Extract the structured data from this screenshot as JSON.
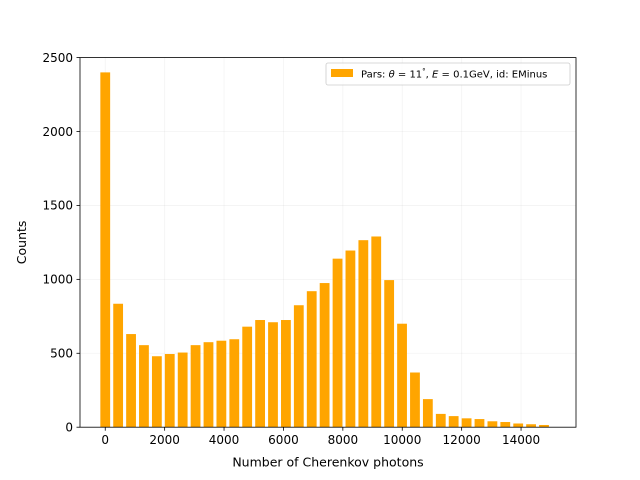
{
  "chart_data": {
    "type": "bar",
    "xlabel": "Number of Cherenkov photons",
    "ylabel": "Counts",
    "xlim": [
      -850,
      15850
    ],
    "ylim": [
      0,
      2500
    ],
    "xticks": [
      0,
      2000,
      4000,
      6000,
      8000,
      10000,
      12000,
      14000
    ],
    "yticks": [
      0,
      500,
      1000,
      1500,
      2000,
      2500
    ],
    "xtick_labels": [
      "0",
      "2000",
      "4000",
      "6000",
      "8000",
      "10000",
      "12000",
      "14000"
    ],
    "ytick_labels": [
      "0",
      "500",
      "1000",
      "1500",
      "2000",
      "2500"
    ],
    "grid": true,
    "legend_position": "top-right",
    "bar_color": "#ffa500",
    "bar_width": 330,
    "series": [
      {
        "name": "Pars: θ = 11°, E = 0.1GeV, id: EMinus",
        "legend_parts": {
          "prefix": "Pars: ",
          "theta_symbol": "θ",
          "theta_value": " = 11",
          "degree": "°",
          "separator": ", ",
          "energy_symbol": "E",
          "energy_value": " = 0.1GeV, id: EMinus"
        },
        "x": [
          0,
          434,
          869,
          1303,
          1738,
          2172,
          2607,
          3041,
          3476,
          3910,
          4345,
          4779,
          5214,
          5648,
          6083,
          6517,
          6952,
          7386,
          7821,
          8255,
          8690,
          9124,
          9559,
          9993,
          10428,
          10862,
          11297,
          11731,
          12166,
          12600,
          13035,
          13469,
          13904,
          14338,
          14773
        ],
        "values": [
          2400,
          835,
          630,
          555,
          480,
          495,
          505,
          555,
          575,
          585,
          595,
          680,
          725,
          710,
          725,
          825,
          920,
          975,
          1140,
          1195,
          1265,
          1290,
          995,
          700,
          370,
          190,
          90,
          75,
          60,
          55,
          40,
          35,
          25,
          20,
          15
        ]
      }
    ]
  }
}
